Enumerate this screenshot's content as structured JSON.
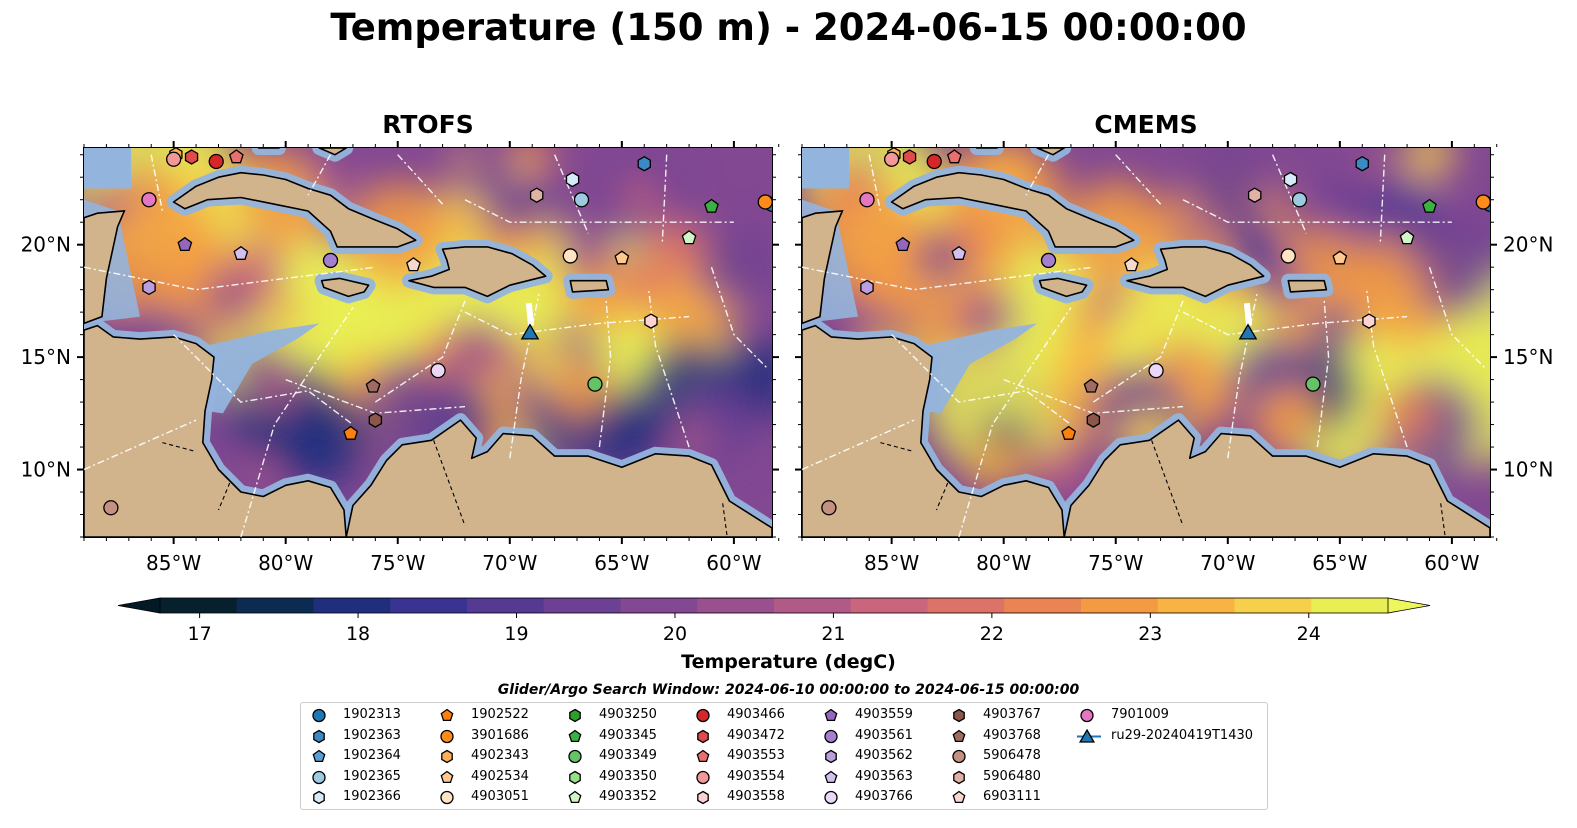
{
  "title": "Temperature (150 m) - 2024-06-15 00:00:00",
  "panels": [
    {
      "title": "RTOFS"
    },
    {
      "title": "CMEMS"
    }
  ],
  "axes": {
    "x_ticks": [
      {
        "label": "85°W",
        "lon": -85
      },
      {
        "label": "80°W",
        "lon": -80
      },
      {
        "label": "75°W",
        "lon": -75
      },
      {
        "label": "70°W",
        "lon": -70
      },
      {
        "label": "65°W",
        "lon": -65
      },
      {
        "label": "60°W",
        "lon": -60
      }
    ],
    "y_ticks": [
      {
        "label": "20°N",
        "lat": 20
      },
      {
        "label": "15°N",
        "lat": 15
      },
      {
        "label": "10°N",
        "lat": 10
      }
    ],
    "lon_range": [
      -89,
      -58.3
    ],
    "lat_range": [
      7,
      24.3
    ]
  },
  "colorbar": {
    "label": "Temperature (degC)",
    "min": 16.75,
    "max": 24.5,
    "extend": "both",
    "ticks": [
      "17",
      "18",
      "19",
      "20",
      "21",
      "22",
      "23",
      "24"
    ],
    "colors": [
      "#06202e",
      "#0c2b52",
      "#1f2f7e",
      "#3a3391",
      "#553a94",
      "#6c4194",
      "#824892",
      "#9a508e",
      "#b15a87",
      "#c9657c",
      "#dc7268",
      "#ea8452",
      "#f49a43",
      "#f9b342",
      "#f6d04a",
      "#e9ee54"
    ]
  },
  "search_window": "Glider/Argo Search Window: 2024-06-10 00:00:00 to 2024-06-15 00:00:00",
  "legend": [
    {
      "id": "1902313",
      "marker": "circle",
      "color": "#1f77b4"
    },
    {
      "id": "1902363",
      "marker": "hexagon",
      "color": "#3b8ac4"
    },
    {
      "id": "1902364",
      "marker": "pentagon",
      "color": "#5a9fd4"
    },
    {
      "id": "1902365",
      "marker": "circle",
      "color": "#9ecae1"
    },
    {
      "id": "1902366",
      "marker": "hexagon",
      "color": "#d6eaf7"
    },
    {
      "id": "1902522",
      "marker": "pentagon",
      "color": "#ff7f0e"
    },
    {
      "id": "3901686",
      "marker": "circle",
      "color": "#ff8c1a"
    },
    {
      "id": "4902343",
      "marker": "hexagon",
      "color": "#ffae5c"
    },
    {
      "id": "4902534",
      "marker": "pentagon",
      "color": "#ffc98f"
    },
    {
      "id": "4903051",
      "marker": "circle",
      "color": "#ffe4c4"
    },
    {
      "id": "4903250",
      "marker": "hexagon",
      "color": "#2ca02c"
    },
    {
      "id": "4903345",
      "marker": "pentagon",
      "color": "#3cb043"
    },
    {
      "id": "4903349",
      "marker": "circle",
      "color": "#66c266"
    },
    {
      "id": "4903350",
      "marker": "hexagon",
      "color": "#98df8a"
    },
    {
      "id": "4903352",
      "marker": "pentagon",
      "color": "#d2f5c8"
    },
    {
      "id": "4903466",
      "marker": "circle",
      "color": "#d62728"
    },
    {
      "id": "4903472",
      "marker": "hexagon",
      "color": "#e04a4a"
    },
    {
      "id": "4903553",
      "marker": "pentagon",
      "color": "#ea6f6f"
    },
    {
      "id": "4903554",
      "marker": "circle",
      "color": "#f29898"
    },
    {
      "id": "4903558",
      "marker": "hexagon",
      "color": "#fcd2d2"
    },
    {
      "id": "4903559",
      "marker": "pentagon",
      "color": "#9467bd"
    },
    {
      "id": "4903561",
      "marker": "circle",
      "color": "#a47fd0"
    },
    {
      "id": "4903562",
      "marker": "hexagon",
      "color": "#bb9ee0"
    },
    {
      "id": "4903563",
      "marker": "pentagon",
      "color": "#d3c0ef"
    },
    {
      "id": "4903766",
      "marker": "circle",
      "color": "#ead6f5"
    },
    {
      "id": "4903767",
      "marker": "hexagon",
      "color": "#8c564b"
    },
    {
      "id": "4903768",
      "marker": "pentagon",
      "color": "#a06b60"
    },
    {
      "id": "5906478",
      "marker": "circle",
      "color": "#c49082"
    },
    {
      "id": "5906480",
      "marker": "hexagon",
      "color": "#e0b2a5"
    },
    {
      "id": "6903111",
      "marker": "pentagon",
      "color": "#f7d8cd"
    },
    {
      "id": "7901009",
      "marker": "circle",
      "color": "#e377c2"
    },
    {
      "id": "ru29-20240419T1430",
      "marker": "triangle-line",
      "color": "#1f77b4"
    }
  ],
  "glider": {
    "id": "ru29-20240419T1430",
    "lon": -69.1,
    "lat": 16.1
  },
  "floats": [
    {
      "id": "1902313",
      "lon": -58.3,
      "lat": 21.8
    },
    {
      "id": "1902363",
      "lon": -64.0,
      "lat": 23.6
    },
    {
      "id": "1902365",
      "lon": -66.8,
      "lat": 22.0
    },
    {
      "id": "1902366",
      "lon": -67.2,
      "lat": 22.9
    },
    {
      "id": "1902522",
      "lon": -77.1,
      "lat": 11.6
    },
    {
      "id": "3901686",
      "lon": -58.6,
      "lat": 21.9
    },
    {
      "id": "4902343",
      "lon": -84.9,
      "lat": 24.0
    },
    {
      "id": "4902534",
      "lon": -65.0,
      "lat": 19.4
    },
    {
      "id": "4903051",
      "lon": -67.3,
      "lat": 19.5
    },
    {
      "id": "4903345",
      "lon": -61.0,
      "lat": 21.7
    },
    {
      "id": "4903349",
      "lon": -66.2,
      "lat": 13.8
    },
    {
      "id": "4903352",
      "lon": -62.0,
      "lat": 20.3
    },
    {
      "id": "4903466",
      "lon": -83.1,
      "lat": 23.7
    },
    {
      "id": "4903472",
      "lon": -84.2,
      "lat": 23.9
    },
    {
      "id": "4903553",
      "lon": -82.2,
      "lat": 23.9
    },
    {
      "id": "4903554",
      "lon": -85.0,
      "lat": 23.8
    },
    {
      "id": "4903558",
      "lon": -63.7,
      "lat": 16.6
    },
    {
      "id": "4903559",
      "lon": -84.5,
      "lat": 20.0
    },
    {
      "id": "4903561",
      "lon": -78.0,
      "lat": 19.3
    },
    {
      "id": "4903563",
      "lon": -82.0,
      "lat": 19.6
    },
    {
      "id": "4903766",
      "lon": -73.2,
      "lat": 14.4
    },
    {
      "id": "4903767",
      "lon": -76.0,
      "lat": 12.2
    },
    {
      "id": "4903768",
      "lon": -76.1,
      "lat": 13.7
    },
    {
      "id": "5906478",
      "lon": -87.8,
      "lat": 8.3
    },
    {
      "id": "5906480",
      "lon": -68.8,
      "lat": 22.2
    },
    {
      "id": "6903111",
      "lon": -74.3,
      "lat": 19.1
    },
    {
      "id": "7901009",
      "lon": -86.1,
      "lat": 22.0
    },
    {
      "id": "4903562",
      "lon": -86.1,
      "lat": 18.1
    }
  ]
}
